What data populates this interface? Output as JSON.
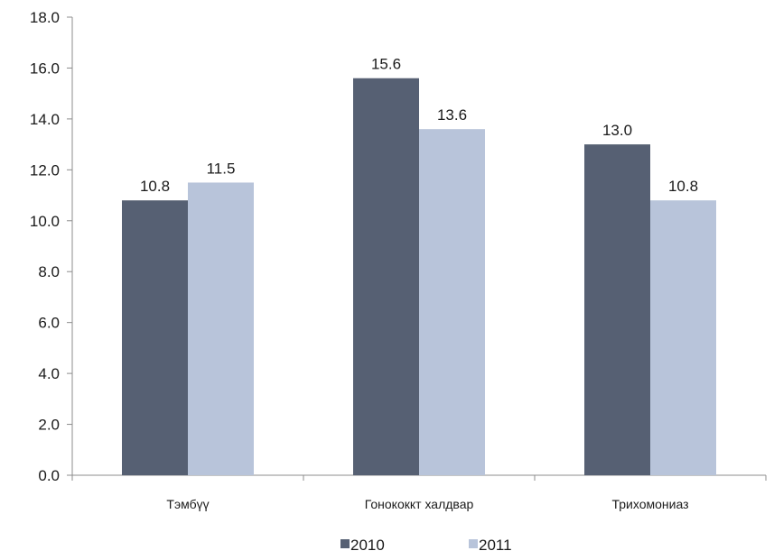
{
  "chart_data": {
    "type": "bar",
    "categories": [
      "Тэмбүү",
      "Гонококкт халдвар",
      "Трихомониаз"
    ],
    "series": [
      {
        "name": "2010",
        "values": [
          10.8,
          15.6,
          13.0
        ],
        "color": "#566073"
      },
      {
        "name": "2011",
        "values": [
          11.5,
          13.6,
          10.8
        ],
        "color": "#b8c4da"
      }
    ],
    "ylim": [
      0,
      18
    ],
    "yticks": [
      "0.0",
      "2.0",
      "4.0",
      "6.0",
      "8.0",
      "10.0",
      "12.0",
      "14.0",
      "16.0",
      "18.0"
    ],
    "grid": false,
    "legend": "bottom",
    "data_labels": true
  }
}
